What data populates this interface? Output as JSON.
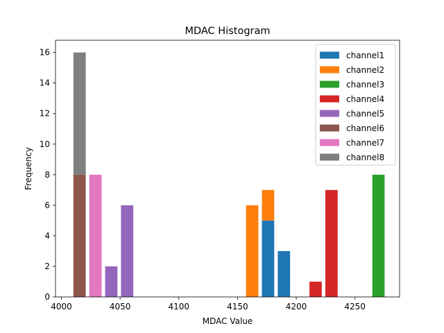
{
  "chart_data": {
    "type": "bar",
    "title": "MDAC Histogram",
    "xlabel": "MDAC Value",
    "ylabel": "Frequency",
    "xlim": [
      3995,
      4288
    ],
    "ylim": [
      0,
      16.8
    ],
    "xticks": [
      4000,
      4050,
      4100,
      4150,
      4200,
      4250
    ],
    "yticks": [
      0,
      2,
      4,
      6,
      8,
      10,
      12,
      14,
      16
    ],
    "bar_width": 10.5,
    "stacked": true,
    "legend_position": "top-right",
    "grid": false,
    "series": [
      {
        "name": "channel1",
        "color": "#1f77b4",
        "bars": [
          {
            "x": 4176,
            "value": 5
          },
          {
            "x": 4189.5,
            "value": 3
          }
        ]
      },
      {
        "name": "channel2",
        "color": "#ff7f0e",
        "bars": [
          {
            "x": 4162.5,
            "value": 6
          },
          {
            "x": 4176,
            "value": 2
          }
        ]
      },
      {
        "name": "channel3",
        "color": "#2ca02c",
        "bars": [
          {
            "x": 4270,
            "value": 8
          }
        ]
      },
      {
        "name": "channel4",
        "color": "#d62728",
        "bars": [
          {
            "x": 4216.5,
            "value": 1
          },
          {
            "x": 4230,
            "value": 7
          }
        ]
      },
      {
        "name": "channel5",
        "color": "#9467bd",
        "bars": [
          {
            "x": 4042.5,
            "value": 2
          },
          {
            "x": 4056,
            "value": 6
          }
        ]
      },
      {
        "name": "channel6",
        "color": "#8c564b",
        "bars": [
          {
            "x": 4015.5,
            "value": 8
          }
        ]
      },
      {
        "name": "channel7",
        "color": "#e377c2",
        "bars": [
          {
            "x": 4029,
            "value": 8
          }
        ]
      },
      {
        "name": "channel8",
        "color": "#7f7f7f",
        "bars": [
          {
            "x": 4015.5,
            "value": 8
          }
        ]
      }
    ]
  }
}
